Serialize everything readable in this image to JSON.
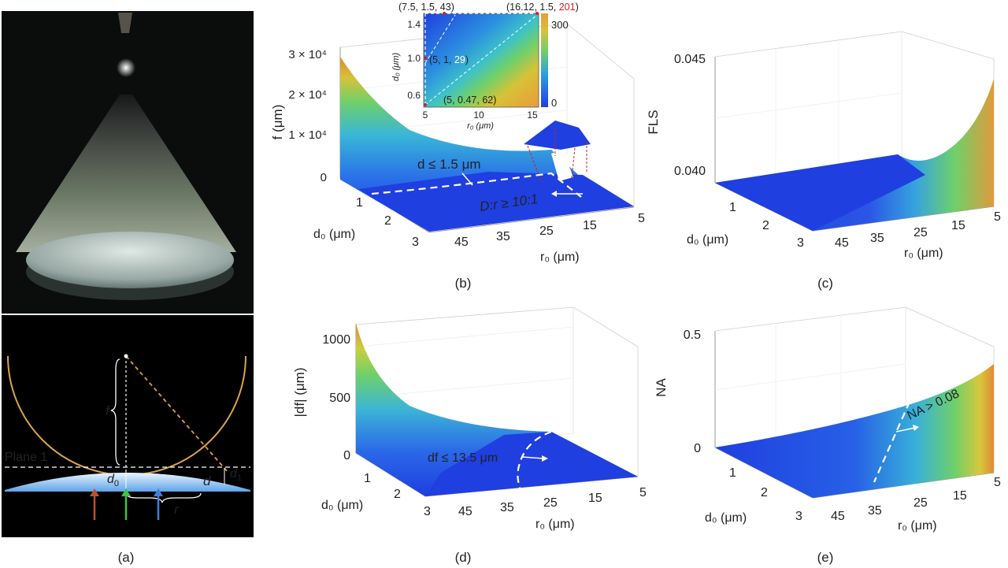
{
  "captions": {
    "a": "(a)",
    "b": "(b)",
    "c": "(c)",
    "d": "(d)",
    "e": "(e)"
  },
  "panel_a": {
    "label_plane": "Plane 1",
    "label_f": "f",
    "label_d0": "d",
    "label_d0_sub": "0",
    "label_d": "d",
    "label_d1": "d",
    "label_d1_sub": "1",
    "label_r": "r",
    "arrow_colors": [
      "#c0502a",
      "#3ec43e",
      "#3f7fe0"
    ],
    "accent_curve": "#d9a44a"
  },
  "panel_b": {
    "y_title": "f (μm)",
    "y_ticks": [
      "0",
      "1 × 10⁴",
      "2 × 10⁴",
      "3 × 10⁴"
    ],
    "d0_ticks": [
      "1",
      "2",
      "3"
    ],
    "r0_ticks": [
      "45",
      "35",
      "25",
      "15",
      "5"
    ],
    "d0_label": "d₀ (μm)",
    "r0_label": "r₀ (μm)",
    "annotation_d": "d ≤ 1.5 μm",
    "annotation_ratio": "D:r ≥ 10:1",
    "inset": {
      "y_title": "d₀ (μm)",
      "x_title": "r₀ (μm)",
      "y_ticks": [
        "0.6",
        "1.0",
        "1.4"
      ],
      "x_ticks": [
        "5",
        "10",
        "15"
      ],
      "colorbar_ticks": [
        "0",
        "300"
      ],
      "p_top_left": "(7.5, 1.5, 43)",
      "p_top_right_a": "(16.12, 1.5, ",
      "p_top_right_b": "201",
      "p_top_right_c": ")",
      "p_mid_a": "(5, 1, ",
      "p_mid_b": "29",
      "p_mid_c": ")",
      "p_bottom": "(5, 0.47, 62)",
      "highlight_color": "#d0201c"
    }
  },
  "panel_c": {
    "y_title": "FLS",
    "y_ticks": [
      "0.040",
      "0.045"
    ],
    "d0_ticks": [
      "1",
      "2",
      "3"
    ],
    "r0_ticks": [
      "45",
      "35",
      "25",
      "15",
      "5"
    ],
    "d0_label": "d₀ (μm)",
    "r0_label": "r₀ (μm)"
  },
  "panel_d": {
    "y_title": "|df| (μm)",
    "y_ticks": [
      "0",
      "500",
      "1000"
    ],
    "d0_ticks": [
      "1",
      "2",
      "3"
    ],
    "r0_ticks": [
      "45",
      "35",
      "25",
      "15",
      "5"
    ],
    "d0_label": "d₀ (μm)",
    "r0_label": "r₀ (μm)",
    "annotation": "df ≤ 13.5 μm"
  },
  "panel_e": {
    "y_title": "NA",
    "y_ticks": [
      "0",
      "0.5"
    ],
    "d0_ticks": [
      "1",
      "2",
      "3"
    ],
    "r0_ticks": [
      "45",
      "35",
      "25",
      "15",
      "5"
    ],
    "d0_label": "d₀ (μm)",
    "r0_label": "r₀ (μm)",
    "annotation": "NA > 0.08"
  }
}
